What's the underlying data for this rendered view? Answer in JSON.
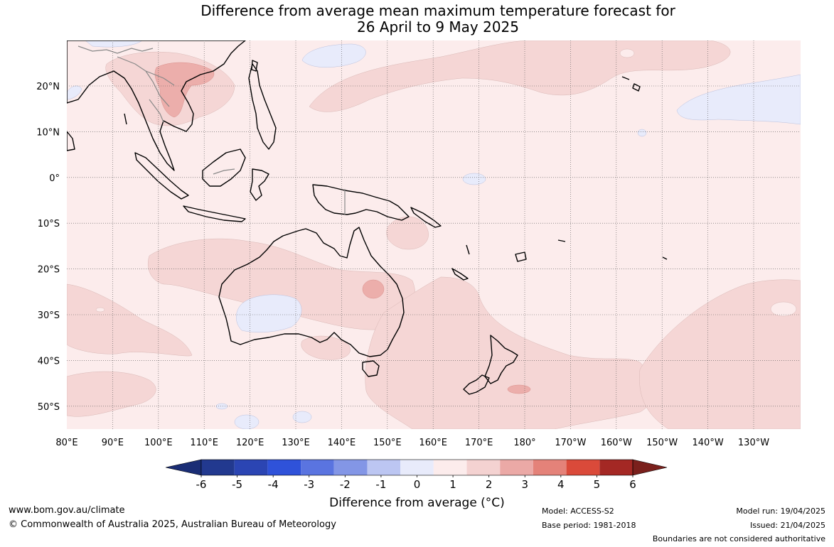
{
  "title": {
    "line1": "Difference from average mean maximum temperature forecast for",
    "line2": "26 April to 9 May 2025"
  },
  "map": {
    "lat_ticks": [
      "20°N",
      "10°N",
      "0°",
      "10°S",
      "20°S",
      "30°S",
      "40°S",
      "50°S"
    ],
    "lon_ticks": [
      "80°E",
      "90°E",
      "100°E",
      "110°E",
      "120°E",
      "130°E",
      "140°E",
      "150°E",
      "160°E",
      "170°E",
      "180°",
      "170°W",
      "160°W",
      "150°W",
      "140°W",
      "130°W"
    ],
    "ocean_color": "#fcecec",
    "land_outline_color": "#000000",
    "grid_style": "dotted"
  },
  "colorbar": {
    "ticks": [
      "-6",
      "-5",
      "-4",
      "-3",
      "-2",
      "-1",
      "0",
      "1",
      "2",
      "3",
      "4",
      "5",
      "6"
    ],
    "colors": [
      "#22398f",
      "#2b45b3",
      "#2f52d9",
      "#5a74e0",
      "#8396e6",
      "#bcc6f2",
      "#e8ebfb",
      "#fcecec",
      "#f4d2d1",
      "#eba9a6",
      "#e48279",
      "#da4a3a",
      "#a42824"
    ],
    "under_color": "#1a2d75",
    "over_color": "#7a201c",
    "label": "Difference from average ($^\\circ$C)",
    "label_display": "Difference from average (°C)"
  },
  "footer": {
    "website": "www.bom.gov.au/climate",
    "copyright": "© Commonwealth of Australia 2025, Australian Bureau of Meteorology",
    "model": "Model: ACCESS-S2",
    "base_period": "Base period: 1981-2018",
    "model_run": "Model run: 19/04/2025",
    "issued": "Issued: 21/04/2025",
    "disclaimer": "Boundaries are not considered authoritative"
  }
}
